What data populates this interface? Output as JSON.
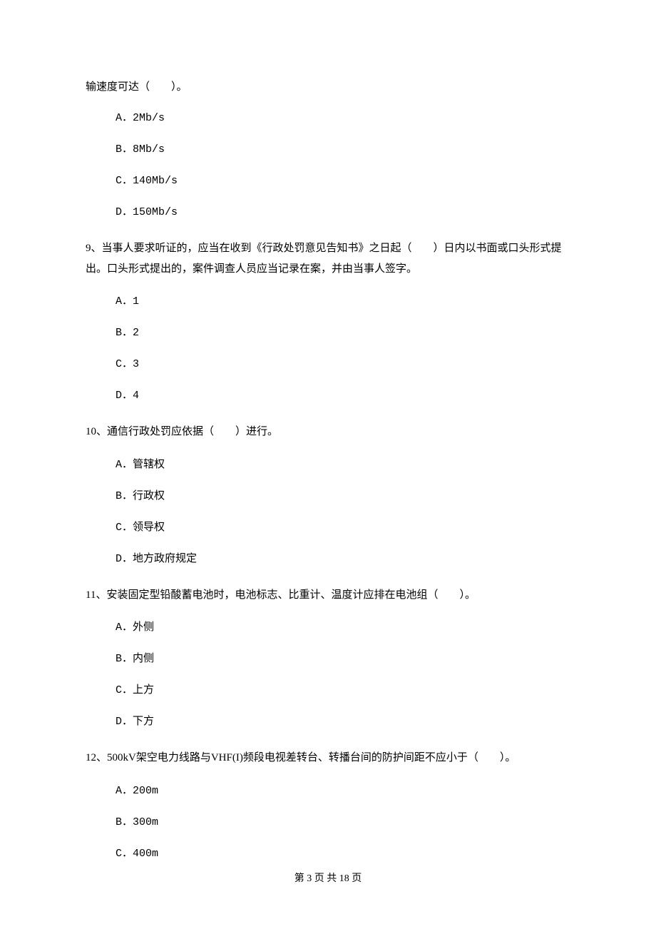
{
  "q8_continuation": "输速度可达（　　）。",
  "q8_options": {
    "a": "A．2Mb/s",
    "b": "B．8Mb/s",
    "c": "C．140Mb/s",
    "d": "D．150Mb/s"
  },
  "q9": {
    "text": "9、当事人要求听证的，应当在收到《行政处罚意见告知书》之日起（　　）日内以书面或口头形式提出。口头形式提出的，案件调查人员应当记录在案，并由当事人签字。",
    "options": {
      "a": "A．1",
      "b": "B．2",
      "c": "C．3",
      "d": "D．4"
    }
  },
  "q10": {
    "text": "10、通信行政处罚应依据（　　）进行。",
    "options": {
      "a": "A．管辖权",
      "b": "B．行政权",
      "c": "C．领导权",
      "d": "D．地方政府规定"
    }
  },
  "q11": {
    "text": "11、安装固定型铅酸蓄电池时，电池标志、比重计、温度计应排在电池组（　　）。",
    "options": {
      "a": "A．外侧",
      "b": "B．内侧",
      "c": "C．上方",
      "d": "D．下方"
    }
  },
  "q12": {
    "text": "12、500kV架空电力线路与VHF(I)频段电视差转台、转播台间的防护间距不应小于（　　）。",
    "options": {
      "a": "A．200m",
      "b": "B．300m",
      "c": "C．400m"
    }
  },
  "footer": "第 3 页 共 18 页"
}
